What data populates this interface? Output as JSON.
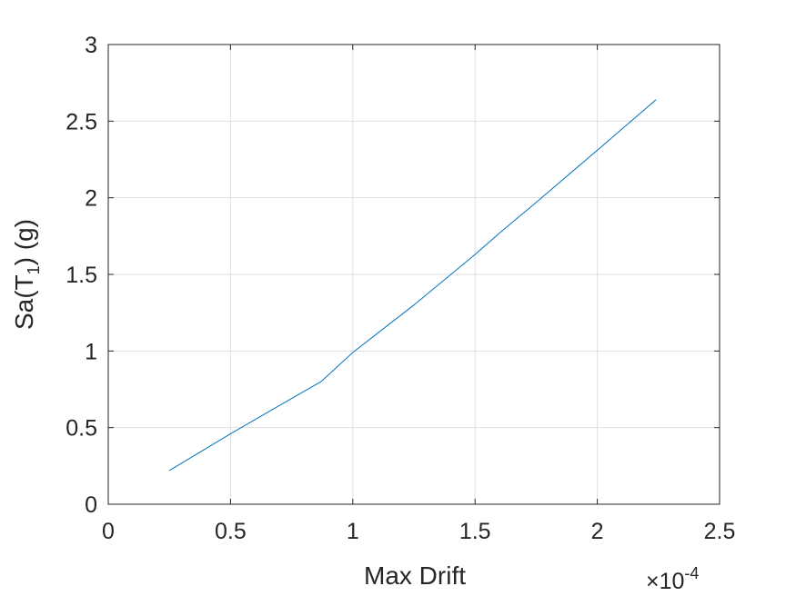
{
  "chart_data": {
    "type": "line",
    "xlabel": "Max Drift",
    "ylabel_main": "Sa(T",
    "ylabel_sub": "1",
    "ylabel_tail": ") (g)",
    "x_exponent_prefix": "×10",
    "x_exponent_power": "-4",
    "xlim": [
      0,
      2.5
    ],
    "ylim": [
      0,
      3
    ],
    "x_ticks": [
      0,
      0.5,
      1,
      1.5,
      2,
      2.5
    ],
    "x_tick_labels": [
      "0",
      "0.5",
      "1",
      "1.5",
      "2",
      "2.5"
    ],
    "y_ticks": [
      0,
      0.5,
      1,
      1.5,
      2,
      2.5,
      3
    ],
    "y_tick_labels": [
      "0",
      "0.5",
      "1",
      "1.5",
      "2",
      "2.5",
      "3"
    ],
    "grid": true,
    "series": [
      {
        "color": "#0072BD",
        "x": [
          0.25,
          0.5,
          0.75,
          0.87,
          1.0,
          1.25,
          1.5,
          1.6,
          1.75,
          2.0,
          2.24
        ],
        "y": [
          0.22,
          0.46,
          0.69,
          0.8,
          0.99,
          1.3,
          1.63,
          1.77,
          1.97,
          2.31,
          2.64
        ]
      }
    ]
  }
}
